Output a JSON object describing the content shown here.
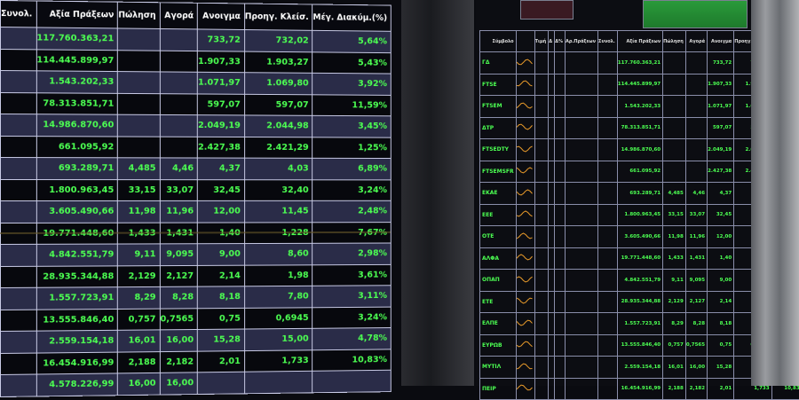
{
  "left_board": {
    "headers": [
      "Συνολ.",
      "Αξία Πράξεων",
      "Πώληση",
      "Αγορά",
      "Ανοιγμα",
      "Προηγ. Κλείσ.",
      "Μέγ. Διακύμ.(%)"
    ],
    "rows": [
      [
        "",
        "117.760.363,21",
        "",
        "",
        "733,72",
        "732,02",
        "5,64%"
      ],
      [
        "",
        "114.445.899,97",
        "",
        "",
        "1.907,33",
        "1.903,27",
        "5,43%"
      ],
      [
        "",
        "1.543.202,33",
        "",
        "",
        "1.071,97",
        "1.069,80",
        "3,92%"
      ],
      [
        "",
        "78.313.851,71",
        "",
        "",
        "597,07",
        "597,07",
        "11,59%"
      ],
      [
        "",
        "14.986.870,60",
        "",
        "",
        "2.049,19",
        "2.044,98",
        "3,45%"
      ],
      [
        "",
        "661.095,92",
        "",
        "",
        "2.427,38",
        "2.421,29",
        "1,25%"
      ],
      [
        "",
        "693.289,71",
        "4,485",
        "4,46",
        "4,37",
        "4,03",
        "6,89%"
      ],
      [
        "",
        "1.800.963,45",
        "33,15",
        "33,07",
        "32,45",
        "32,40",
        "3,24%"
      ],
      [
        "",
        "3.605.490,66",
        "11,98",
        "11,96",
        "12,00",
        "11,45",
        "2,48%"
      ],
      [
        "",
        "19.771.448,60",
        "1,433",
        "1,431",
        "1,40",
        "1,228",
        "7,67%"
      ],
      [
        "",
        "4.842.551,79",
        "9,11",
        "9,095",
        "9,00",
        "8,60",
        "2,98%"
      ],
      [
        "",
        "28.935.344,88",
        "2,129",
        "2,127",
        "2,14",
        "1,98",
        "3,61%"
      ],
      [
        "",
        "1.557.723,91",
        "8,29",
        "8,28",
        "8,18",
        "7,80",
        "3,11%"
      ],
      [
        "",
        "13.555.846,40",
        "0,757",
        "0,7565",
        "0,75",
        "0,6945",
        "3,24%"
      ],
      [
        "",
        "2.559.154,18",
        "16,01",
        "16,00",
        "15,28",
        "15,00",
        "4,78%"
      ],
      [
        "",
        "16.454.916,99",
        "2,188",
        "2,182",
        "2,01",
        "1,733",
        "10,83%"
      ],
      [
        "",
        "4.578.226,99",
        "16,00",
        "16,00",
        "",
        "",
        ""
      ]
    ]
  },
  "right_board": {
    "headers": [
      "Σύμβολο",
      "",
      "Τιμή",
      "Δ",
      "Δ%",
      "Αρ.Πράξεων",
      "Συνολ.",
      "Αξία Πράξεων",
      "Πώληση",
      "Αγορά",
      "Ανοιγμα",
      "Προηγ. Κλείσ.",
      "Μέγ. Διακύμ."
    ],
    "symbols": [
      "ΓΔ",
      "FTSE",
      "FTSEM",
      "ΔΤΡ",
      "FTSEDTY",
      "FTSEMSFR",
      "ΕΚΑΕ",
      "ΕΕΕ",
      "ΟΤΕ",
      "ΑΛΦΑ",
      "ΟΠΑΠ",
      "ΕΤΕ",
      "ΕΛΠΕ",
      "ΕΥΡΩΒ",
      "ΜΥΤΙΛ",
      "ΠΕΙΡ"
    ],
    "accent": "#4cff52",
    "sparkline_color": "#e89a2a"
  }
}
